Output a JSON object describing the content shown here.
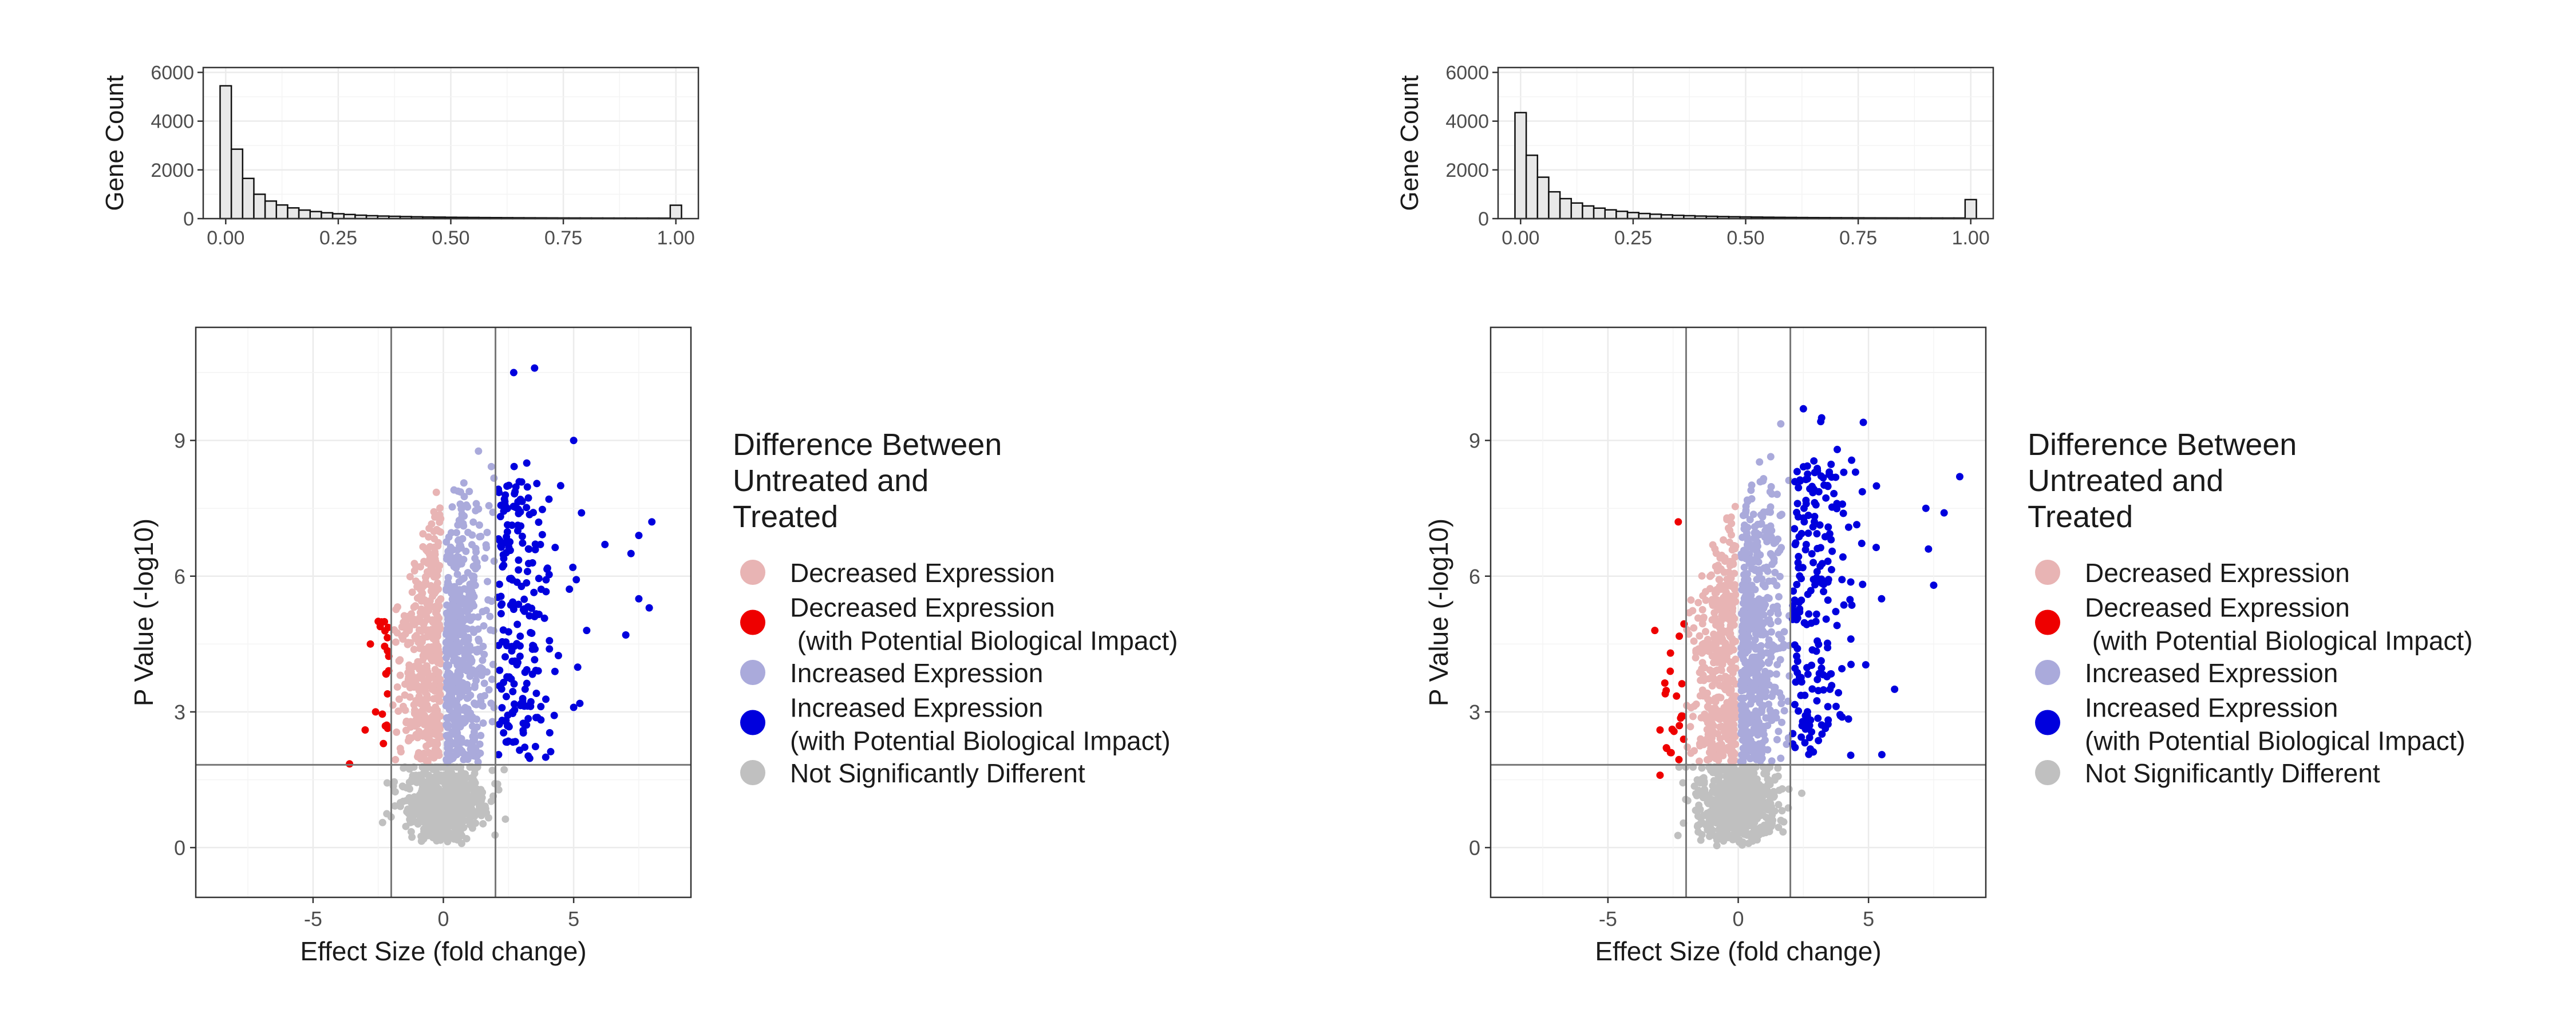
{
  "legend": {
    "title_lines": [
      "Difference Between",
      "Untreated and",
      "Treated"
    ],
    "items": [
      {
        "lines": [
          "Decreased Expression"
        ],
        "color": "#e8b4b4"
      },
      {
        "lines": [
          "Decreased Expression",
          " (with Potential Biological Impact)"
        ],
        "color": "#ee0000"
      },
      {
        "lines": [
          "Increased Expression"
        ],
        "color": "#aaaadb"
      },
      {
        "lines": [
          "Increased Expression",
          "(with Potential Biological Impact)"
        ],
        "color": "#0000dd"
      },
      {
        "lines": [
          "Not Significantly Different"
        ],
        "color": "#c0c0c0"
      }
    ]
  },
  "chart_data": [
    {
      "type": "bar",
      "panel": "left-histogram",
      "ylabel": "Gene Count",
      "xlabel": "",
      "xlim": [
        -0.05,
        1.05
      ],
      "ylim": [
        0,
        6200
      ],
      "xticks": [
        0.0,
        0.25,
        0.5,
        0.75,
        1.0
      ],
      "xtick_labels": [
        "0.00",
        "0.25",
        "0.50",
        "0.75",
        "1.00"
      ],
      "yticks": [
        0,
        2000,
        4000,
        6000
      ],
      "ytick_labels": [
        "0",
        "2000",
        "4000",
        "6000"
      ],
      "bin_width": 0.025,
      "values": [
        5450,
        2850,
        1650,
        1000,
        720,
        560,
        440,
        350,
        290,
        240,
        200,
        170,
        140,
        120,
        105,
        95,
        85,
        75,
        68,
        62,
        56,
        52,
        48,
        44,
        41,
        38,
        35,
        33,
        31,
        29,
        27,
        26,
        25,
        24,
        23,
        22,
        22,
        21,
        21,
        20,
        550
      ],
      "grid": true
    },
    {
      "type": "scatter",
      "panel": "left-volcano",
      "xlabel": "Effect Size (fold change)",
      "ylabel": "P Value (-log10)",
      "xlim": [
        -9.5,
        9.5
      ],
      "ylim": [
        -1.1,
        11.5
      ],
      "xticks": [
        -5,
        0,
        5
      ],
      "xtick_labels": [
        "-5",
        "0",
        "5"
      ],
      "yticks": [
        0,
        3,
        6,
        9
      ],
      "ytick_labels": [
        "0",
        "3",
        "6",
        "9"
      ],
      "vlines": [
        -2,
        2
      ],
      "hline": 1.83,
      "max_neglog10p": 9.0,
      "grid": true,
      "highlight_points": {
        "increased_impact": [
          [
            2.7,
            10.5
          ],
          [
            3.5,
            10.6
          ],
          [
            5.0,
            9.0
          ],
          [
            7.5,
            6.9
          ],
          [
            8.0,
            7.2
          ],
          [
            7.2,
            6.5
          ],
          [
            7.5,
            5.5
          ],
          [
            7.9,
            5.3
          ],
          [
            7.0,
            4.7
          ],
          [
            5.5,
            4.8
          ],
          [
            5.0,
            3.1
          ],
          [
            6.2,
            6.7
          ],
          [
            5.3,
            7.4
          ],
          [
            3.2,
            8.5
          ],
          [
            4.5,
            8.0
          ]
        ],
        "decreased_impact": [
          [
            -3.6,
            1.85
          ],
          [
            -2.5,
            5.0
          ],
          [
            -2.8,
            4.5
          ],
          [
            -2.6,
            3.0
          ],
          [
            -3.0,
            2.6
          ],
          [
            -2.3,
            2.3
          ]
        ]
      }
    },
    {
      "type": "bar",
      "panel": "right-histogram",
      "ylabel": "Gene Count",
      "xlabel": "",
      "xlim": [
        -0.05,
        1.05
      ],
      "ylim": [
        0,
        6200
      ],
      "xticks": [
        0.0,
        0.25,
        0.5,
        0.75,
        1.0
      ],
      "xtick_labels": [
        "0.00",
        "0.25",
        "0.50",
        "0.75",
        "1.00"
      ],
      "yticks": [
        0,
        2000,
        4000,
        6000
      ],
      "ytick_labels": [
        "0",
        "2000",
        "4000",
        "6000"
      ],
      "bin_width": 0.025,
      "values": [
        4350,
        2600,
        1700,
        1100,
        820,
        640,
        520,
        430,
        360,
        300,
        250,
        210,
        180,
        155,
        135,
        120,
        105,
        95,
        85,
        77,
        70,
        64,
        58,
        53,
        49,
        45,
        42,
        39,
        37,
        35,
        33,
        31,
        30,
        29,
        28,
        27,
        26,
        26,
        25,
        25,
        780
      ],
      "grid": true
    },
    {
      "type": "scatter",
      "panel": "right-volcano",
      "xlabel": "Effect Size (fold change)",
      "ylabel": "P Value (-log10)",
      "xlim": [
        -9.5,
        9.5
      ],
      "ylim": [
        -1.1,
        11.5
      ],
      "xticks": [
        -5,
        0,
        5
      ],
      "xtick_labels": [
        "-5",
        "0",
        "5"
      ],
      "yticks": [
        0,
        3,
        6,
        9
      ],
      "ytick_labels": [
        "0",
        "3",
        "6",
        "9"
      ],
      "vlines": [
        -2,
        2
      ],
      "hline": 1.83,
      "max_neglog10p": 9.5,
      "grid": true,
      "highlight_points": {
        "increased_impact": [
          [
            2.5,
            9.7
          ],
          [
            3.2,
            9.5
          ],
          [
            4.8,
            9.4
          ],
          [
            8.5,
            8.2
          ],
          [
            7.2,
            7.5
          ],
          [
            7.9,
            7.4
          ],
          [
            7.3,
            6.6
          ],
          [
            7.5,
            5.8
          ],
          [
            6.0,
            3.5
          ],
          [
            5.5,
            5.5
          ],
          [
            4.5,
            8.3
          ],
          [
            3.8,
            8.8
          ]
        ],
        "decreased_impact": [
          [
            -3.0,
            1.6
          ],
          [
            -2.3,
            7.2
          ],
          [
            -3.2,
            4.8
          ],
          [
            -2.6,
            4.3
          ],
          [
            -2.8,
            3.4
          ],
          [
            -3.0,
            2.6
          ],
          [
            -2.6,
            2.1
          ]
        ]
      }
    }
  ]
}
